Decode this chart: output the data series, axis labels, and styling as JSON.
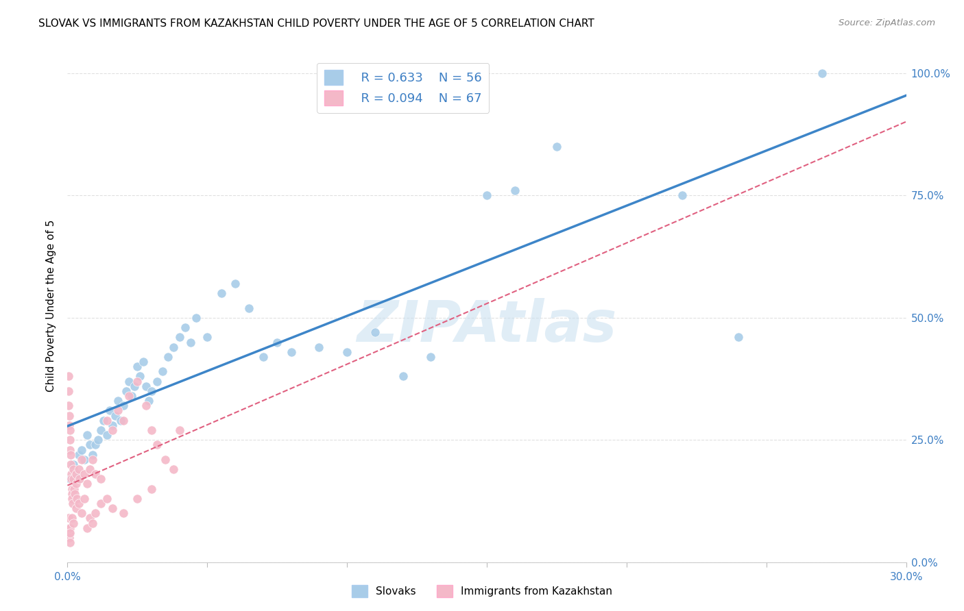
{
  "title": "SLOVAK VS IMMIGRANTS FROM KAZAKHSTAN CHILD POVERTY UNDER THE AGE OF 5 CORRELATION CHART",
  "source": "Source: ZipAtlas.com",
  "ylabel": "Child Poverty Under the Age of 5",
  "legend_label1": "Slovaks",
  "legend_label2": "Immigrants from Kazakhstan",
  "R1": 0.633,
  "N1": 56,
  "R2": 0.094,
  "N2": 67,
  "blue_color": "#a8cce8",
  "pink_color": "#f4b8c8",
  "blue_line_color": "#3d85c8",
  "pink_line_color": "#e06080",
  "blue_scatter": [
    [
      0.001,
      0.17
    ],
    [
      0.002,
      0.2
    ],
    [
      0.003,
      0.18
    ],
    [
      0.004,
      0.22
    ],
    [
      0.005,
      0.23
    ],
    [
      0.006,
      0.21
    ],
    [
      0.007,
      0.26
    ],
    [
      0.008,
      0.24
    ],
    [
      0.009,
      0.22
    ],
    [
      0.01,
      0.24
    ],
    [
      0.011,
      0.25
    ],
    [
      0.012,
      0.27
    ],
    [
      0.013,
      0.29
    ],
    [
      0.014,
      0.26
    ],
    [
      0.015,
      0.31
    ],
    [
      0.016,
      0.28
    ],
    [
      0.017,
      0.3
    ],
    [
      0.018,
      0.33
    ],
    [
      0.019,
      0.29
    ],
    [
      0.02,
      0.32
    ],
    [
      0.021,
      0.35
    ],
    [
      0.022,
      0.37
    ],
    [
      0.023,
      0.34
    ],
    [
      0.024,
      0.36
    ],
    [
      0.025,
      0.4
    ],
    [
      0.026,
      0.38
    ],
    [
      0.027,
      0.41
    ],
    [
      0.028,
      0.36
    ],
    [
      0.029,
      0.33
    ],
    [
      0.03,
      0.35
    ],
    [
      0.032,
      0.37
    ],
    [
      0.034,
      0.39
    ],
    [
      0.036,
      0.42
    ],
    [
      0.038,
      0.44
    ],
    [
      0.04,
      0.46
    ],
    [
      0.042,
      0.48
    ],
    [
      0.044,
      0.45
    ],
    [
      0.046,
      0.5
    ],
    [
      0.05,
      0.46
    ],
    [
      0.055,
      0.55
    ],
    [
      0.06,
      0.57
    ],
    [
      0.065,
      0.52
    ],
    [
      0.07,
      0.42
    ],
    [
      0.075,
      0.45
    ],
    [
      0.08,
      0.43
    ],
    [
      0.09,
      0.44
    ],
    [
      0.1,
      0.43
    ],
    [
      0.11,
      0.47
    ],
    [
      0.12,
      0.38
    ],
    [
      0.13,
      0.42
    ],
    [
      0.15,
      0.75
    ],
    [
      0.16,
      0.76
    ],
    [
      0.175,
      0.85
    ],
    [
      0.22,
      0.75
    ],
    [
      0.24,
      0.46
    ],
    [
      0.27,
      1.0
    ]
  ],
  "pink_scatter": [
    [
      0.0003,
      0.38
    ],
    [
      0.0004,
      0.35
    ],
    [
      0.0005,
      0.32
    ],
    [
      0.0006,
      0.3
    ],
    [
      0.0007,
      0.28
    ],
    [
      0.0008,
      0.27
    ],
    [
      0.0009,
      0.25
    ],
    [
      0.001,
      0.23
    ],
    [
      0.0011,
      0.22
    ],
    [
      0.0012,
      0.2
    ],
    [
      0.0013,
      0.18
    ],
    [
      0.0014,
      0.17
    ],
    [
      0.0015,
      0.15
    ],
    [
      0.0016,
      0.14
    ],
    [
      0.0017,
      0.13
    ],
    [
      0.0018,
      0.12
    ],
    [
      0.002,
      0.19
    ],
    [
      0.0022,
      0.17
    ],
    [
      0.0024,
      0.15
    ],
    [
      0.0026,
      0.14
    ],
    [
      0.003,
      0.18
    ],
    [
      0.0032,
      0.16
    ],
    [
      0.0034,
      0.13
    ],
    [
      0.004,
      0.19
    ],
    [
      0.0042,
      0.17
    ],
    [
      0.005,
      0.21
    ],
    [
      0.006,
      0.18
    ],
    [
      0.007,
      0.16
    ],
    [
      0.008,
      0.19
    ],
    [
      0.009,
      0.21
    ],
    [
      0.01,
      0.18
    ],
    [
      0.012,
      0.17
    ],
    [
      0.014,
      0.29
    ],
    [
      0.016,
      0.27
    ],
    [
      0.018,
      0.31
    ],
    [
      0.02,
      0.29
    ],
    [
      0.022,
      0.34
    ],
    [
      0.025,
      0.37
    ],
    [
      0.028,
      0.32
    ],
    [
      0.03,
      0.27
    ],
    [
      0.032,
      0.24
    ],
    [
      0.035,
      0.21
    ],
    [
      0.038,
      0.19
    ],
    [
      0.04,
      0.27
    ],
    [
      0.0003,
      0.09
    ],
    [
      0.0005,
      0.07
    ],
    [
      0.0006,
      0.06
    ],
    [
      0.0007,
      0.05
    ],
    [
      0.0008,
      0.04
    ],
    [
      0.0009,
      0.07
    ],
    [
      0.001,
      0.06
    ],
    [
      0.0015,
      0.09
    ],
    [
      0.002,
      0.08
    ],
    [
      0.003,
      0.11
    ],
    [
      0.004,
      0.12
    ],
    [
      0.005,
      0.1
    ],
    [
      0.006,
      0.13
    ],
    [
      0.007,
      0.07
    ],
    [
      0.008,
      0.09
    ],
    [
      0.009,
      0.08
    ],
    [
      0.01,
      0.1
    ],
    [
      0.012,
      0.12
    ],
    [
      0.014,
      0.13
    ],
    [
      0.016,
      0.11
    ],
    [
      0.02,
      0.1
    ],
    [
      0.025,
      0.13
    ],
    [
      0.03,
      0.15
    ]
  ],
  "xlim": [
    0.0,
    0.3
  ],
  "ylim": [
    0.0,
    1.05
  ],
  "xtick_positions": [
    0.0,
    0.05,
    0.1,
    0.15,
    0.2,
    0.25,
    0.3
  ],
  "xtick_labels": [
    "0.0%",
    "",
    "",
    "",
    "",
    "",
    "30.0%"
  ],
  "ytick_positions": [
    0.0,
    0.25,
    0.5,
    0.75,
    1.0
  ],
  "ytick_labels": [
    "0.0%",
    "25.0%",
    "50.0%",
    "75.0%",
    "100.0%"
  ],
  "watermark": "ZIPAtlas",
  "grid_color": "#e0e0e0",
  "title_fontsize": 11,
  "tick_fontsize": 11
}
